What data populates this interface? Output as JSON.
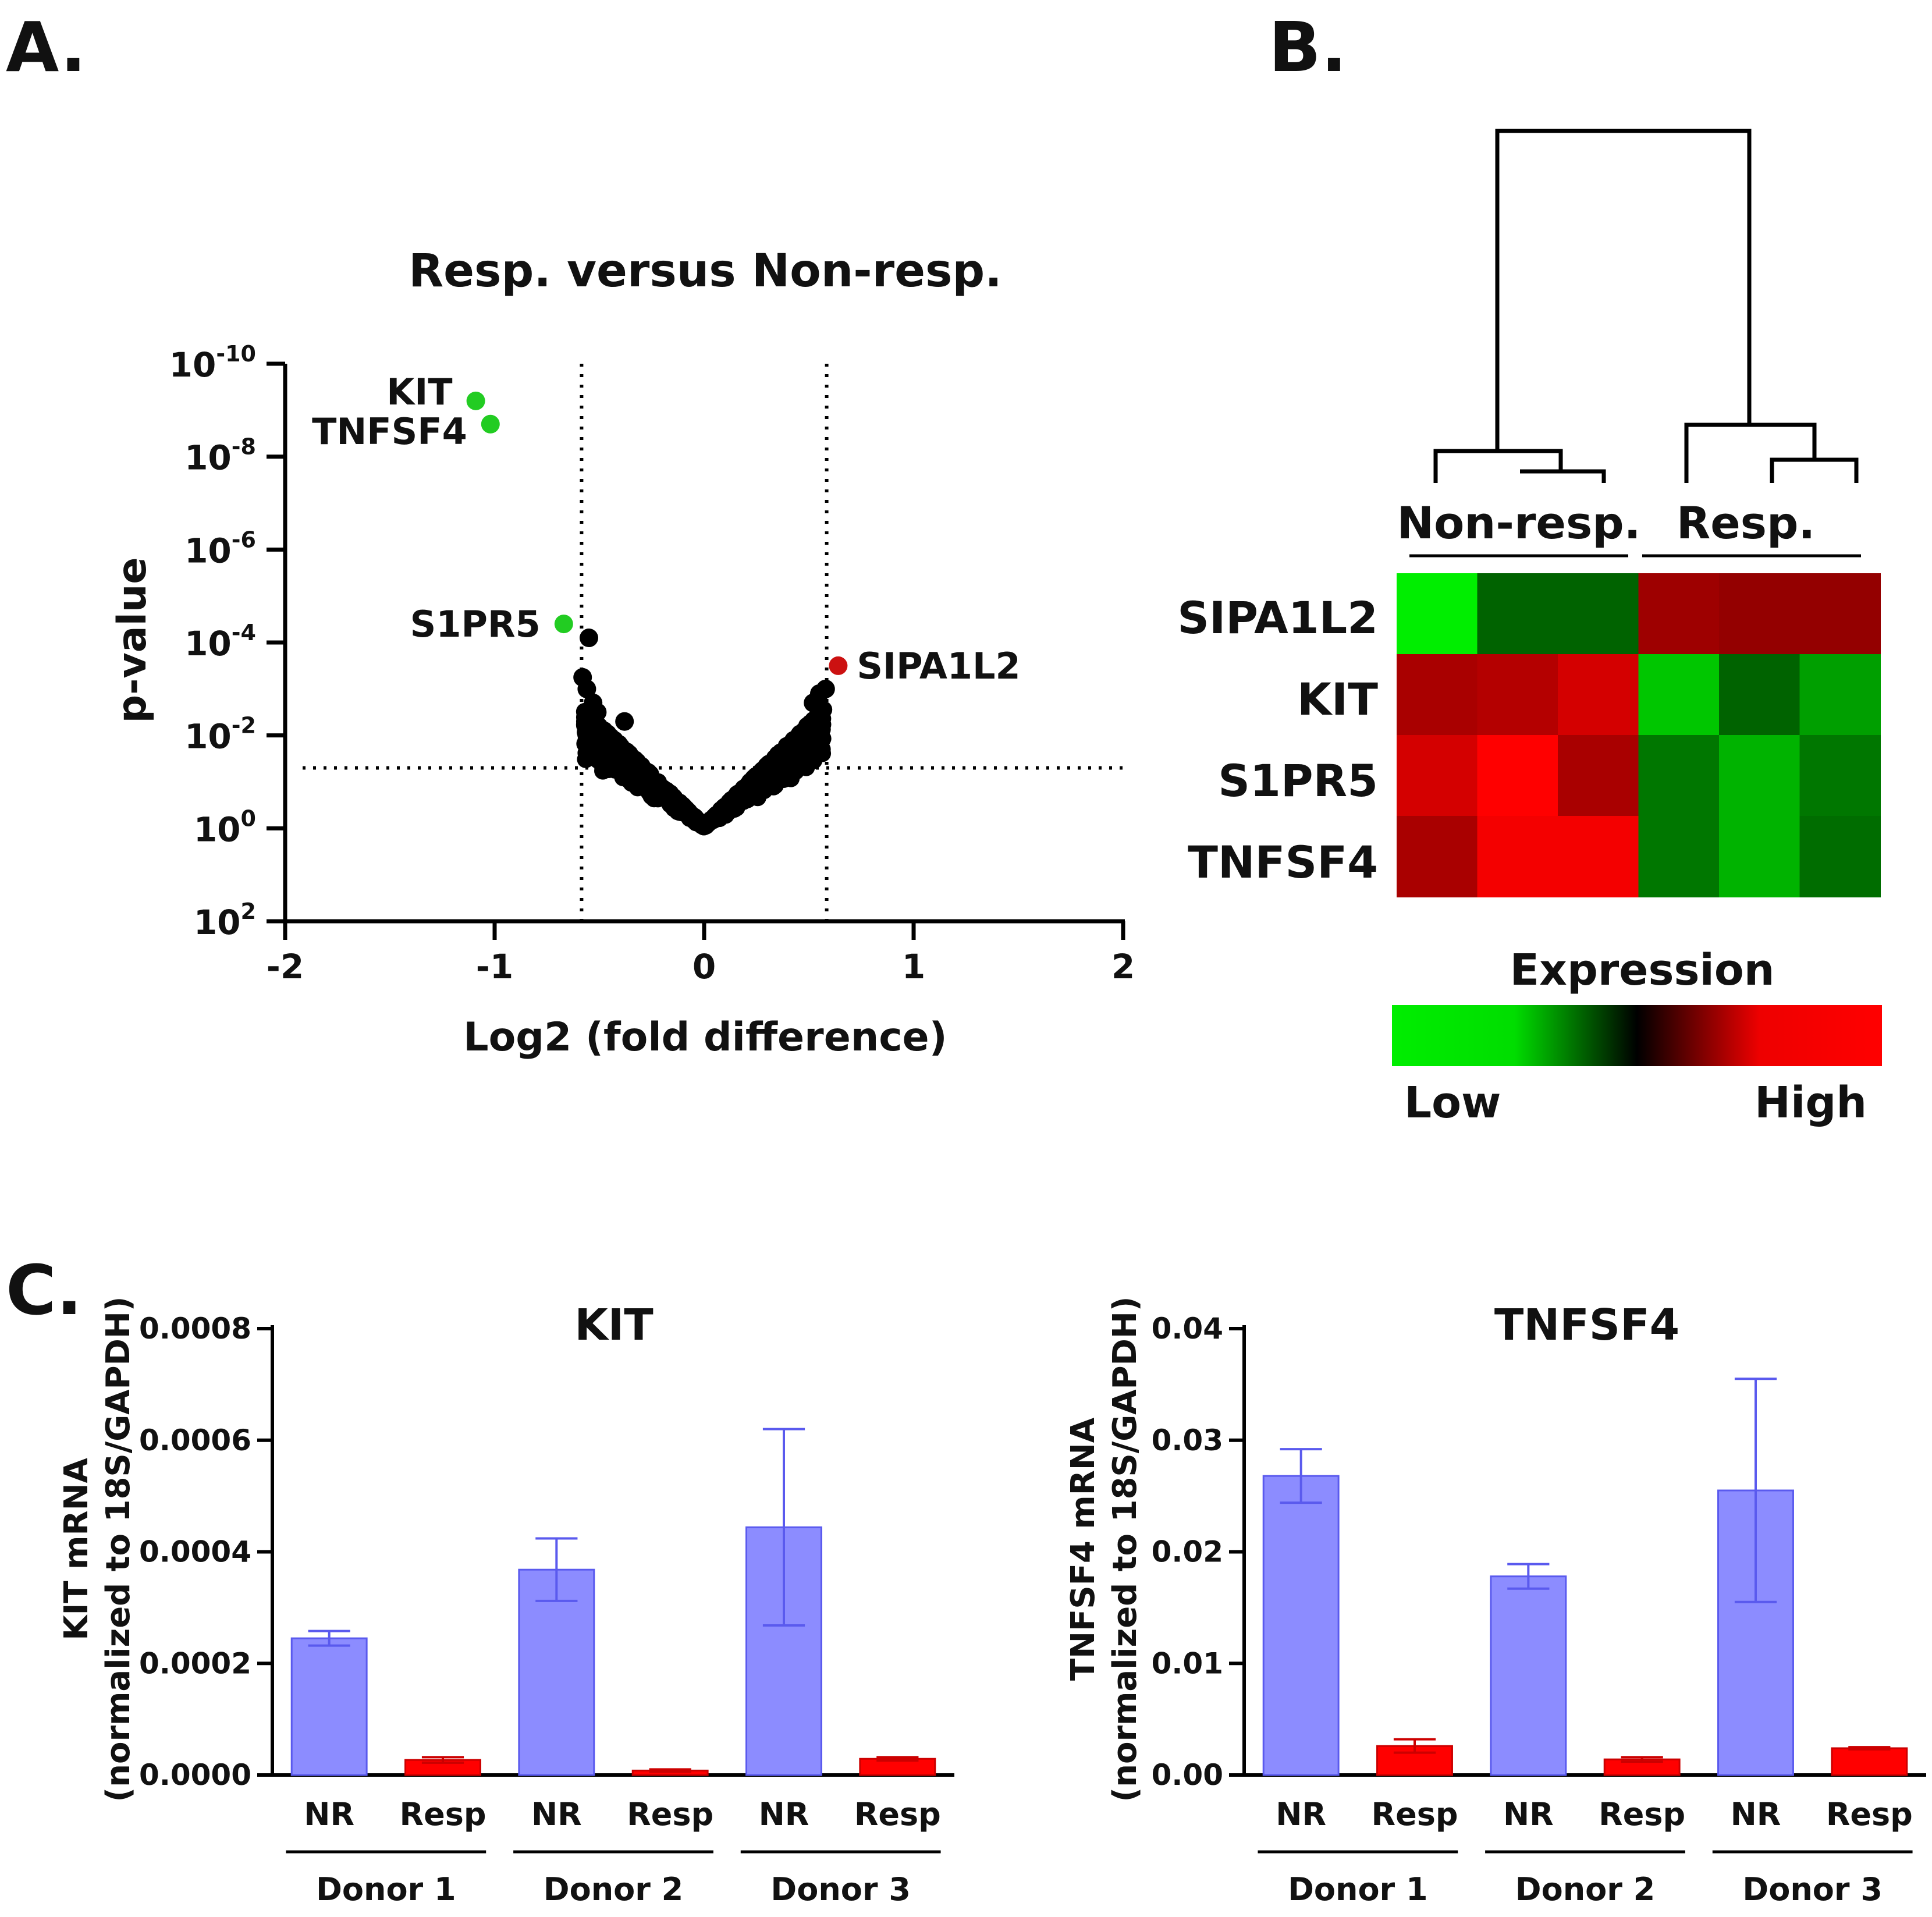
{
  "panel_labels": {
    "a": "A.",
    "b": "B.",
    "c": "C."
  },
  "colors": {
    "green_point": "#22cc22",
    "red_point": "#cc1111",
    "black_point": "#000000",
    "nr_bar": "#8c8cff",
    "resp_bar": "#ff0000",
    "nr_err": "#5a5aee",
    "resp_err": "#cc0000"
  },
  "chart_data": [
    {
      "id": "volcano",
      "type": "scatter",
      "title": "Resp. versus Non-resp.",
      "xlabel": "Log2 (fold difference)",
      "ylabel": "p-value",
      "xlim": [
        -2,
        2
      ],
      "ylim_log10": [
        2,
        -10
      ],
      "x_ticks": [
        "-2",
        "-1",
        "0",
        "1",
        "2"
      ],
      "y_ticks": [
        {
          "base": "10",
          "exp": "-10",
          "log10": -10
        },
        {
          "base": "10",
          "exp": "-8",
          "log10": -8
        },
        {
          "base": "10",
          "exp": "-6",
          "log10": -6
        },
        {
          "base": "10",
          "exp": "-4",
          "log10": -4
        },
        {
          "base": "10",
          "exp": "-2",
          "log10": -2
        },
        {
          "base": "10",
          "exp": "0",
          "log10": 0
        },
        {
          "base": "10",
          "exp": "2",
          "log10": 2
        }
      ],
      "thresholds": {
        "x": [
          -0.585,
          0.585
        ],
        "neg_log10_p": 1.3
      },
      "labeled_points": [
        {
          "gene": "KIT",
          "log2fc": -1.09,
          "neg_log10_p": 9.2,
          "color": "green"
        },
        {
          "gene": "TNFSF4",
          "log2fc": -1.02,
          "neg_log10_p": 8.7,
          "color": "green"
        },
        {
          "gene": "S1PR5",
          "log2fc": -0.67,
          "neg_log10_p": 4.4,
          "color": "green"
        },
        {
          "gene": "SIPA1L2",
          "log2fc": 0.64,
          "neg_log10_p": 3.5,
          "color": "red"
        }
      ],
      "other_points": [
        {
          "log2fc": -0.55,
          "neg_log10_p": 4.1
        },
        {
          "log2fc": -0.58,
          "neg_log10_p": 3.25
        },
        {
          "log2fc": -0.56,
          "neg_log10_p": 3.0
        },
        {
          "log2fc": -0.53,
          "neg_log10_p": 2.7
        },
        {
          "log2fc": -0.51,
          "neg_log10_p": 2.5
        },
        {
          "log2fc": -0.38,
          "neg_log10_p": 2.3
        },
        {
          "log2fc": 0.52,
          "neg_log10_p": 2.7
        },
        {
          "log2fc": 0.55,
          "neg_log10_p": 2.9
        },
        {
          "log2fc": 0.58,
          "neg_log10_p": 3.0
        }
      ],
      "bulk": {
        "count": 900,
        "seed": 7,
        "max_fc": 0.57
      }
    },
    {
      "id": "heatmap",
      "type": "heatmap",
      "legend_title": "Expression",
      "legend_low": "Low",
      "legend_high": "High",
      "groups": [
        "Non-resp.",
        "Resp."
      ],
      "rows": [
        "SIPA1L2",
        "KIT",
        "S1PR5",
        "TNFSF4"
      ],
      "values": [
        [
          -1.0,
          -0.3,
          -0.3,
          0.55,
          0.5,
          0.5
        ],
        [
          0.6,
          0.65,
          0.8,
          -0.8,
          -0.3,
          -0.6
        ],
        [
          0.8,
          1.0,
          0.6,
          -0.4,
          -0.7,
          -0.4
        ],
        [
          0.6,
          0.95,
          0.95,
          -0.4,
          -0.7,
          -0.35
        ]
      ]
    },
    {
      "id": "kit-bars",
      "type": "bar",
      "title": "KIT",
      "ylabel_line1": "KIT mRNA",
      "ylabel_line2": "(normalized to 18S/GAPDH)",
      "ylim": [
        0,
        0.0008
      ],
      "y_ticks": [
        "0.0000",
        "0.0002",
        "0.0004",
        "0.0006",
        "0.0008"
      ],
      "y_tick_values": [
        0,
        0.0002,
        0.0004,
        0.0006,
        0.0008
      ],
      "categories": [
        "NR",
        "Resp",
        "NR",
        "Resp",
        "NR",
        "Resp"
      ],
      "donors": [
        "Donor 1",
        "Donor 2",
        "Donor 3"
      ],
      "values": [
        0.000245,
        2.7e-05,
        0.000368,
        8e-06,
        0.000444,
        2.9e-05
      ],
      "errors": [
        1.3e-05,
        5e-06,
        5.6e-05,
        2e-06,
        0.000176,
        3e-06
      ]
    },
    {
      "id": "tnfsf4-bars",
      "type": "bar",
      "title": "TNFSF4",
      "ylabel_line1": "TNFSF4 mRNA",
      "ylabel_line2": "(normalized to 18S/GAPDH)",
      "ylim": [
        0,
        0.04
      ],
      "y_ticks": [
        "0.00",
        "0.01",
        "0.02",
        "0.03",
        "0.04"
      ],
      "y_tick_values": [
        0,
        0.01,
        0.02,
        0.03,
        0.04
      ],
      "categories": [
        "NR",
        "Resp",
        "NR",
        "Resp",
        "NR",
        "Resp"
      ],
      "donors": [
        "Donor 1",
        "Donor 2",
        "Donor 3"
      ],
      "values": [
        0.0268,
        0.0026,
        0.0178,
        0.0014,
        0.0255,
        0.0024
      ],
      "errors": [
        0.0024,
        0.0006,
        0.0011,
        0.0002,
        0.01,
        0.0001
      ]
    }
  ]
}
